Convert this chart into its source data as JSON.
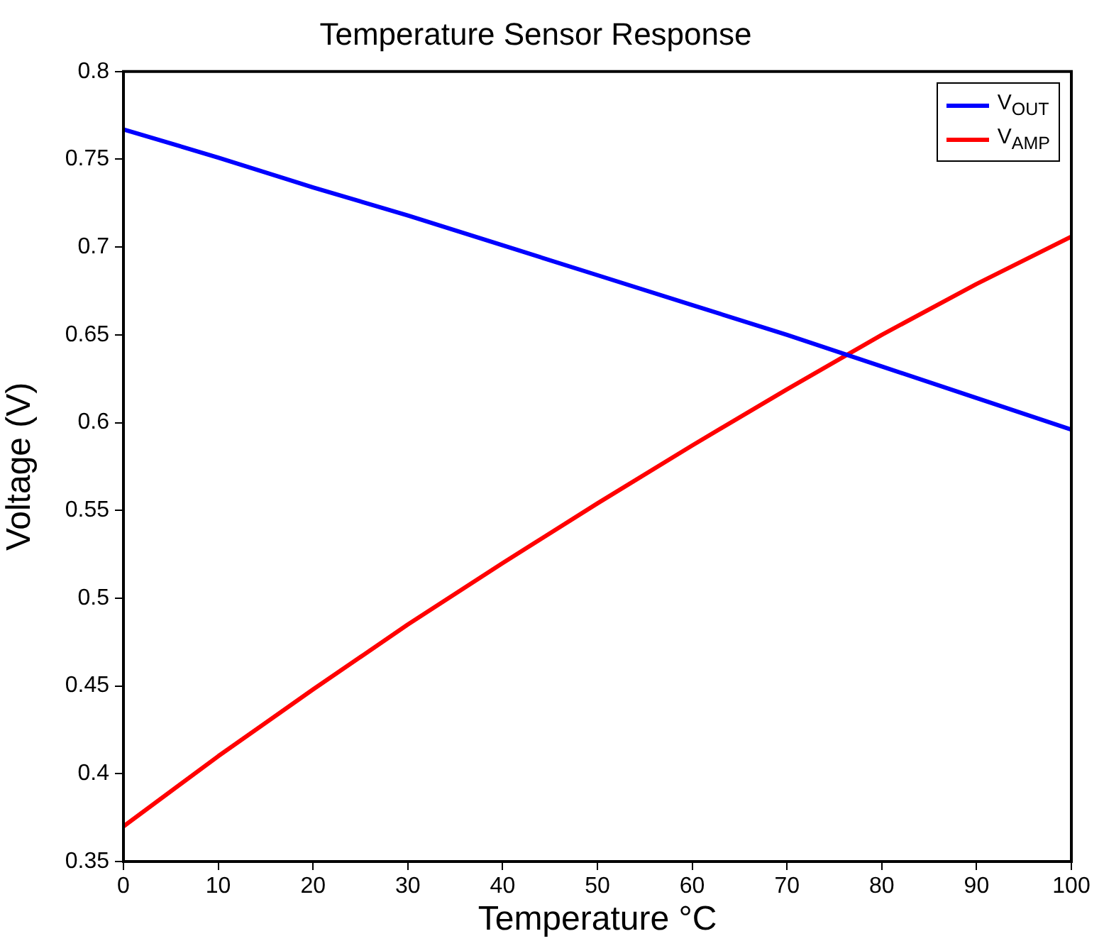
{
  "chart_data": {
    "type": "line",
    "title": "Temperature Sensor Response",
    "xlabel": "Temperature °C",
    "ylabel": "Voltage (V)",
    "x": [
      0,
      10,
      20,
      30,
      40,
      50,
      60,
      70,
      80,
      90,
      100
    ],
    "series": [
      {
        "name": "V$_{OUT}$",
        "color": "#0000ff",
        "values": [
          0.767,
          0.751,
          0.734,
          0.718,
          0.701,
          0.684,
          0.667,
          0.65,
          0.632,
          0.614,
          0.596
        ]
      },
      {
        "name": "V$_{AMP}$",
        "color": "#ff0000",
        "values": [
          0.37,
          0.41,
          0.448,
          0.485,
          0.52,
          0.554,
          0.587,
          0.619,
          0.65,
          0.679,
          0.706
        ]
      }
    ],
    "xlim": [
      0,
      100
    ],
    "xticks": [
      0,
      10,
      20,
      30,
      40,
      50,
      60,
      70,
      80,
      90,
      100
    ],
    "ylim": [
      0.35,
      0.8
    ],
    "yticks": [
      0.35,
      0.4,
      0.45,
      0.5,
      0.55,
      0.6,
      0.65,
      0.7,
      0.75,
      0.8
    ],
    "grid": false,
    "legend": "top right",
    "marker": "none",
    "line_style": "solid"
  }
}
